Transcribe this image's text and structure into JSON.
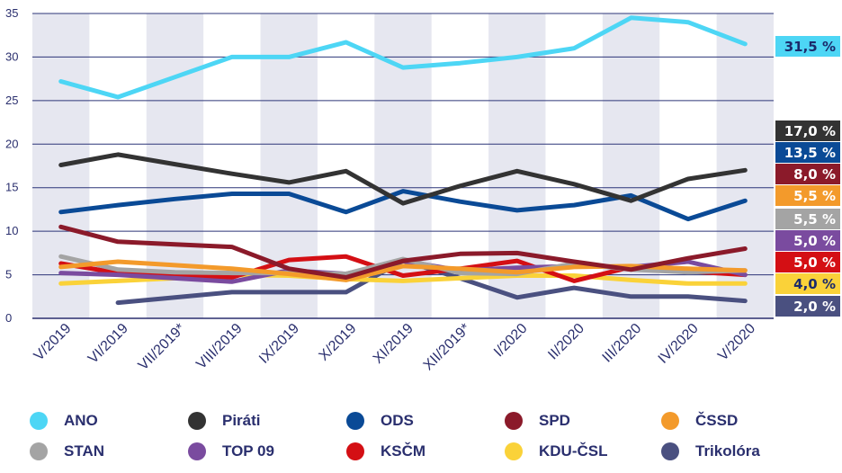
{
  "chart_data": {
    "type": "line",
    "categories": [
      "V/2019",
      "VI/2019",
      "VII/2019*",
      "VIII/2019",
      "IX/2019",
      "X/2019",
      "XI/2019",
      "XII/2019*",
      "I/2020",
      "II/2020",
      "III/2020",
      "IV/2020",
      "V/2020"
    ],
    "ylim": [
      0,
      35
    ],
    "yticks": [
      0,
      5,
      10,
      15,
      20,
      25,
      30,
      35
    ],
    "grid": true,
    "series": [
      {
        "name": "ANO",
        "color": "#4dd6f5",
        "values": [
          27.2,
          25.4,
          27.7,
          30.0,
          30.0,
          31.7,
          28.8,
          29.3,
          30.0,
          31.0,
          34.5,
          34.0,
          31.5
        ],
        "end_label": "31,5 %",
        "end_text_color": "#1b2a6b"
      },
      {
        "name": "Piráti",
        "color": "#333333",
        "values": [
          17.6,
          18.8,
          17.7,
          16.6,
          15.6,
          16.9,
          13.2,
          15.2,
          16.9,
          15.4,
          13.5,
          16.0,
          17.0
        ],
        "end_label": "17,0 %",
        "end_text_color": "#ffffff"
      },
      {
        "name": "ODS",
        "color": "#0a4a96",
        "values": [
          12.2,
          13.0,
          13.7,
          14.3,
          14.3,
          12.2,
          14.6,
          13.4,
          12.4,
          13.0,
          14.1,
          11.4,
          13.5
        ],
        "end_label": "13,5 %",
        "end_text_color": "#ffffff"
      },
      {
        "name": "SPD",
        "color": "#8b1a2a",
        "values": [
          10.5,
          8.8,
          8.5,
          8.2,
          5.7,
          4.7,
          6.6,
          7.4,
          7.5,
          6.5,
          5.6,
          6.9,
          8.0
        ],
        "end_label": "8,0 %",
        "end_text_color": "#ffffff"
      },
      {
        "name": "ČSSD",
        "color": "#f39a2b",
        "values": [
          5.9,
          6.5,
          6.1,
          5.7,
          5.1,
          4.4,
          6.0,
          5.7,
          5.3,
          5.9,
          6.0,
          5.7,
          5.5
        ],
        "end_label": "5,5 %",
        "end_text_color": "#ffffff"
      },
      {
        "name": "STAN",
        "color": "#a4a4a4",
        "values": [
          7.1,
          5.6,
          5.3,
          5.2,
          5.2,
          5.1,
          6.8,
          5.2,
          5.1,
          6.3,
          5.6,
          5.3,
          5.5
        ],
        "end_label": "5,5 %",
        "end_text_color": "#ffffff"
      },
      {
        "name": "TOP 09",
        "color": "#7a4b9f",
        "values": [
          5.2,
          5.0,
          4.6,
          4.2,
          5.5,
          5.1,
          6.6,
          5.5,
          5.8,
          6.0,
          5.9,
          6.5,
          5.0
        ],
        "end_label": "5,0 %",
        "end_text_color": "#ffffff"
      },
      {
        "name": "KSČM",
        "color": "#d40f14",
        "values": [
          6.3,
          5.2,
          4.9,
          4.7,
          6.7,
          7.1,
          4.9,
          5.7,
          6.6,
          4.3,
          5.9,
          5.4,
          5.0
        ],
        "end_label": "5,0 %",
        "end_text_color": "#ffffff"
      },
      {
        "name": "KDU-ČSL",
        "color": "#fad239",
        "values": [
          4.0,
          4.3,
          4.6,
          5.0,
          4.9,
          4.5,
          4.3,
          4.6,
          4.9,
          4.9,
          4.4,
          4.0,
          4.0
        ],
        "end_label": "4,0 %",
        "end_text_color": "#1b2a6b"
      },
      {
        "name": "Trikolóra",
        "color": "#4a5080",
        "values": [
          null,
          1.8,
          2.4,
          3.0,
          3.0,
          3.0,
          6.6,
          4.6,
          2.4,
          3.5,
          2.5,
          2.5,
          2.0
        ],
        "end_label": "2,0 %",
        "end_text_color": "#ffffff"
      }
    ]
  }
}
